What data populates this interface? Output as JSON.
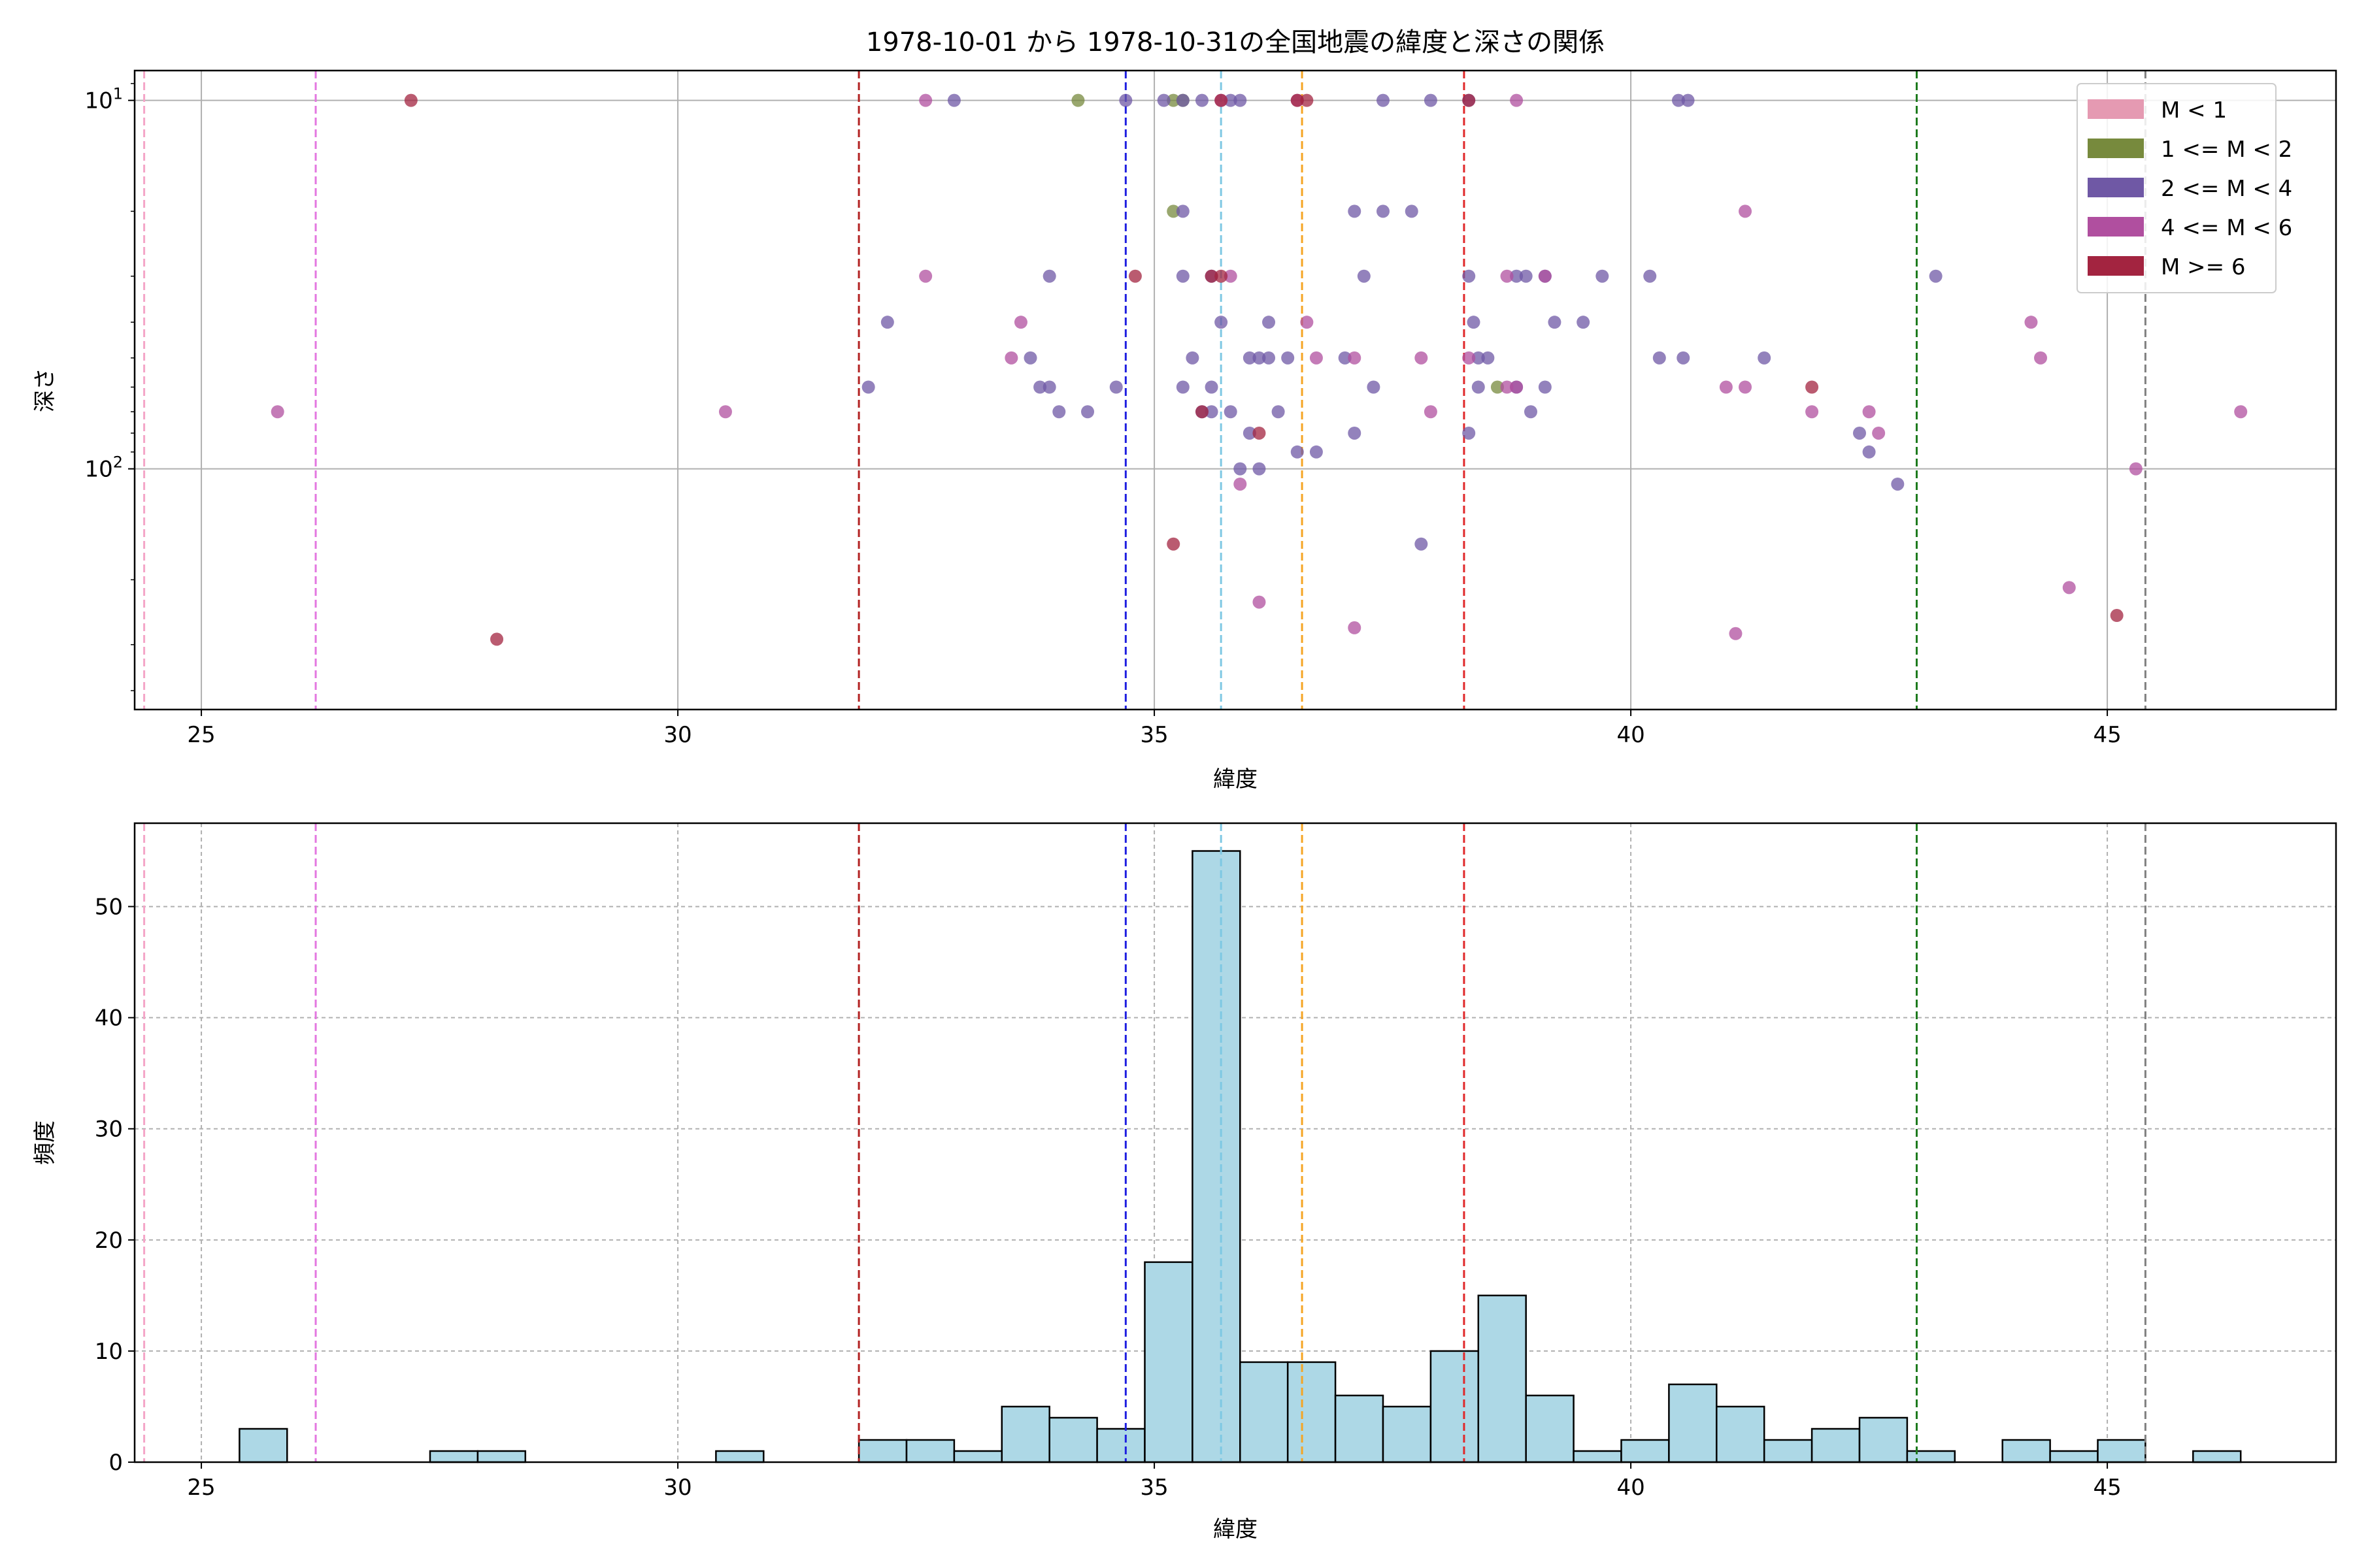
{
  "title": "1978-10-01 から 1978-10-31の全国地震の緯度と深さの関係",
  "legend": {
    "placement": "top-right",
    "items": [
      {
        "label": "M < 1",
        "color": "#e59ab2"
      },
      {
        "label": "1 <= M < 2",
        "color": "#778a3d"
      },
      {
        "label": "2 <= M < 4",
        "color": "#6f58a5"
      },
      {
        "label": "4 <= M < 6",
        "color": "#b04f9f"
      },
      {
        "label": "M >= 6",
        "color": "#a32440"
      }
    ]
  },
  "chart_data": [
    {
      "type": "scatter",
      "xlabel": "緯度",
      "ylabel": "深さ",
      "xlim": [
        24.3,
        47.4
      ],
      "ylim": [
        450,
        8.3
      ],
      "yscale": "log",
      "grid": true,
      "xticks": [
        25,
        30,
        35,
        40,
        45
      ],
      "yticks": [
        {
          "value": 10,
          "label": "10",
          "exp": "1"
        },
        {
          "value": 100,
          "label": "10",
          "exp": "2"
        }
      ],
      "vlines": [
        {
          "x": 24.4,
          "color": "#f4a6c8"
        },
        {
          "x": 26.2,
          "color": "#e377e0"
        },
        {
          "x": 31.9,
          "color": "#b22222"
        },
        {
          "x": 34.7,
          "color": "#1f1fe0"
        },
        {
          "x": 35.7,
          "color": "#7ec8e3"
        },
        {
          "x": 36.55,
          "color": "#f5a524"
        },
        {
          "x": 38.25,
          "color": "#e0282a"
        },
        {
          "x": 43.0,
          "color": "#1d7a1d"
        },
        {
          "x": 45.4,
          "color": "#808080"
        }
      ],
      "series": [
        {
          "name": "M < 1",
          "color": "#e59ab2",
          "points": []
        },
        {
          "name": "1 <= M < 2",
          "color": "#778a3d",
          "points": [
            [
              34.2,
              10
            ],
            [
              35.2,
              10
            ],
            [
              35.3,
              10
            ],
            [
              35.2,
              20
            ],
            [
              38.6,
              60
            ]
          ]
        },
        {
          "name": "2 <= M < 4",
          "color": "#6f58a5",
          "points": [
            [
              32.9,
              10
            ],
            [
              34.7,
              10
            ],
            [
              35.1,
              10
            ],
            [
              35.3,
              10
            ],
            [
              35.5,
              10
            ],
            [
              35.8,
              10
            ],
            [
              35.9,
              10
            ],
            [
              37.4,
              10
            ],
            [
              37.9,
              10
            ],
            [
              38.3,
              10
            ],
            [
              40.5,
              10
            ],
            [
              40.6,
              10
            ],
            [
              35.3,
              20
            ],
            [
              37.1,
              20
            ],
            [
              37.4,
              20
            ],
            [
              37.7,
              20
            ],
            [
              33.9,
              30
            ],
            [
              35.3,
              30
            ],
            [
              35.6,
              30
            ],
            [
              37.2,
              30
            ],
            [
              38.3,
              30
            ],
            [
              38.8,
              30
            ],
            [
              38.9,
              30
            ],
            [
              39.1,
              30
            ],
            [
              39.7,
              30
            ],
            [
              40.2,
              30
            ],
            [
              43.2,
              30
            ],
            [
              32.2,
              40
            ],
            [
              35.7,
              40
            ],
            [
              36.2,
              40
            ],
            [
              38.35,
              40
            ],
            [
              39.2,
              40
            ],
            [
              39.5,
              40
            ],
            [
              33.7,
              50
            ],
            [
              35.4,
              50
            ],
            [
              36.0,
              50
            ],
            [
              36.1,
              50
            ],
            [
              36.2,
              50
            ],
            [
              36.4,
              50
            ],
            [
              37.0,
              50
            ],
            [
              38.4,
              50
            ],
            [
              38.5,
              50
            ],
            [
              40.3,
              50
            ],
            [
              40.55,
              50
            ],
            [
              41.4,
              50
            ],
            [
              32.0,
              60
            ],
            [
              33.8,
              60
            ],
            [
              33.9,
              60
            ],
            [
              34.6,
              60
            ],
            [
              35.3,
              60
            ],
            [
              35.6,
              60
            ],
            [
              37.3,
              60
            ],
            [
              38.4,
              60
            ],
            [
              38.8,
              60
            ],
            [
              39.1,
              60
            ],
            [
              34.0,
              70
            ],
            [
              34.3,
              70
            ],
            [
              35.5,
              70
            ],
            [
              35.6,
              70
            ],
            [
              35.8,
              70
            ],
            [
              36.3,
              70
            ],
            [
              38.95,
              70
            ],
            [
              36.0,
              80
            ],
            [
              37.1,
              80
            ],
            [
              38.3,
              80
            ],
            [
              42.4,
              80
            ],
            [
              36.5,
              90
            ],
            [
              36.7,
              90
            ],
            [
              42.5,
              90
            ],
            [
              35.9,
              100
            ],
            [
              36.1,
              100
            ],
            [
              42.8,
              110
            ],
            [
              37.8,
              160
            ]
          ]
        },
        {
          "name": "4 <= M < 6",
          "color": "#b04f9f",
          "points": [
            [
              32.6,
              10
            ],
            [
              35.7,
              10
            ],
            [
              36.5,
              10
            ],
            [
              38.8,
              10
            ],
            [
              41.2,
              20
            ],
            [
              32.6,
              30
            ],
            [
              35.8,
              30
            ],
            [
              38.7,
              30
            ],
            [
              39.1,
              30
            ],
            [
              33.6,
              40
            ],
            [
              36.6,
              40
            ],
            [
              44.2,
              40
            ],
            [
              33.5,
              50
            ],
            [
              36.7,
              50
            ],
            [
              37.1,
              50
            ],
            [
              37.8,
              50
            ],
            [
              38.3,
              50
            ],
            [
              44.3,
              50
            ],
            [
              38.7,
              60
            ],
            [
              38.8,
              60
            ],
            [
              41.0,
              60
            ],
            [
              41.2,
              60
            ],
            [
              25.8,
              70
            ],
            [
              30.5,
              70
            ],
            [
              37.9,
              70
            ],
            [
              41.9,
              70
            ],
            [
              42.5,
              70
            ],
            [
              46.4,
              70
            ],
            [
              42.6,
              80
            ],
            [
              45.3,
              100
            ],
            [
              35.9,
              110
            ],
            [
              36.1,
              230
            ],
            [
              44.6,
              210
            ],
            [
              37.1,
              270
            ],
            [
              41.1,
              280
            ]
          ]
        },
        {
          "name": "M >= 6",
          "color": "#a32440",
          "points": [
            [
              27.2,
              10
            ],
            [
              35.7,
              10
            ],
            [
              36.5,
              10
            ],
            [
              36.6,
              10
            ],
            [
              38.3,
              10
            ],
            [
              34.8,
              30
            ],
            [
              35.6,
              30
            ],
            [
              35.7,
              30
            ],
            [
              41.9,
              60
            ],
            [
              35.5,
              70
            ],
            [
              36.1,
              80
            ],
            [
              35.2,
              160
            ],
            [
              45.1,
              250
            ],
            [
              28.1,
              290
            ]
          ]
        }
      ]
    },
    {
      "type": "bar",
      "xlabel": "緯度",
      "ylabel": "頻度",
      "xlim": [
        24.3,
        47.4
      ],
      "ylim": [
        0,
        57.5
      ],
      "grid": true,
      "xticks": [
        25,
        30,
        35,
        40,
        45
      ],
      "yticks": [
        0,
        10,
        20,
        30,
        40,
        50
      ],
      "bin_width": 0.5,
      "bars": [
        {
          "x0": 25.4,
          "value": 3
        },
        {
          "x0": 27.4,
          "value": 1
        },
        {
          "x0": 27.9,
          "value": 1
        },
        {
          "x0": 30.4,
          "value": 1
        },
        {
          "x0": 31.9,
          "value": 2
        },
        {
          "x0": 32.4,
          "value": 2
        },
        {
          "x0": 32.9,
          "value": 1
        },
        {
          "x0": 33.4,
          "value": 5
        },
        {
          "x0": 33.9,
          "value": 4
        },
        {
          "x0": 34.4,
          "value": 3
        },
        {
          "x0": 34.9,
          "value": 18
        },
        {
          "x0": 35.4,
          "value": 55
        },
        {
          "x0": 35.9,
          "value": 9
        },
        {
          "x0": 36.4,
          "value": 9
        },
        {
          "x0": 36.9,
          "value": 6
        },
        {
          "x0": 37.4,
          "value": 5
        },
        {
          "x0": 37.9,
          "value": 10
        },
        {
          "x0": 38.4,
          "value": 15
        },
        {
          "x0": 38.9,
          "value": 6
        },
        {
          "x0": 39.4,
          "value": 1
        },
        {
          "x0": 39.9,
          "value": 2
        },
        {
          "x0": 40.4,
          "value": 7
        },
        {
          "x0": 40.9,
          "value": 5
        },
        {
          "x0": 41.4,
          "value": 2
        },
        {
          "x0": 41.9,
          "value": 3
        },
        {
          "x0": 42.4,
          "value": 4
        },
        {
          "x0": 42.9,
          "value": 1
        },
        {
          "x0": 43.9,
          "value": 2
        },
        {
          "x0": 44.4,
          "value": 1
        },
        {
          "x0": 44.9,
          "value": 2
        },
        {
          "x0": 45.9,
          "value": 1
        }
      ],
      "bar_color": "#add8e6",
      "vlines": [
        {
          "x": 24.4,
          "color": "#f4a6c8"
        },
        {
          "x": 26.2,
          "color": "#e377e0"
        },
        {
          "x": 31.9,
          "color": "#b22222"
        },
        {
          "x": 34.7,
          "color": "#1f1fe0"
        },
        {
          "x": 35.7,
          "color": "#7ec8e3"
        },
        {
          "x": 36.55,
          "color": "#f5a524"
        },
        {
          "x": 38.25,
          "color": "#e0282a"
        },
        {
          "x": 43.0,
          "color": "#1d7a1d"
        },
        {
          "x": 45.4,
          "color": "#808080"
        }
      ]
    }
  ]
}
